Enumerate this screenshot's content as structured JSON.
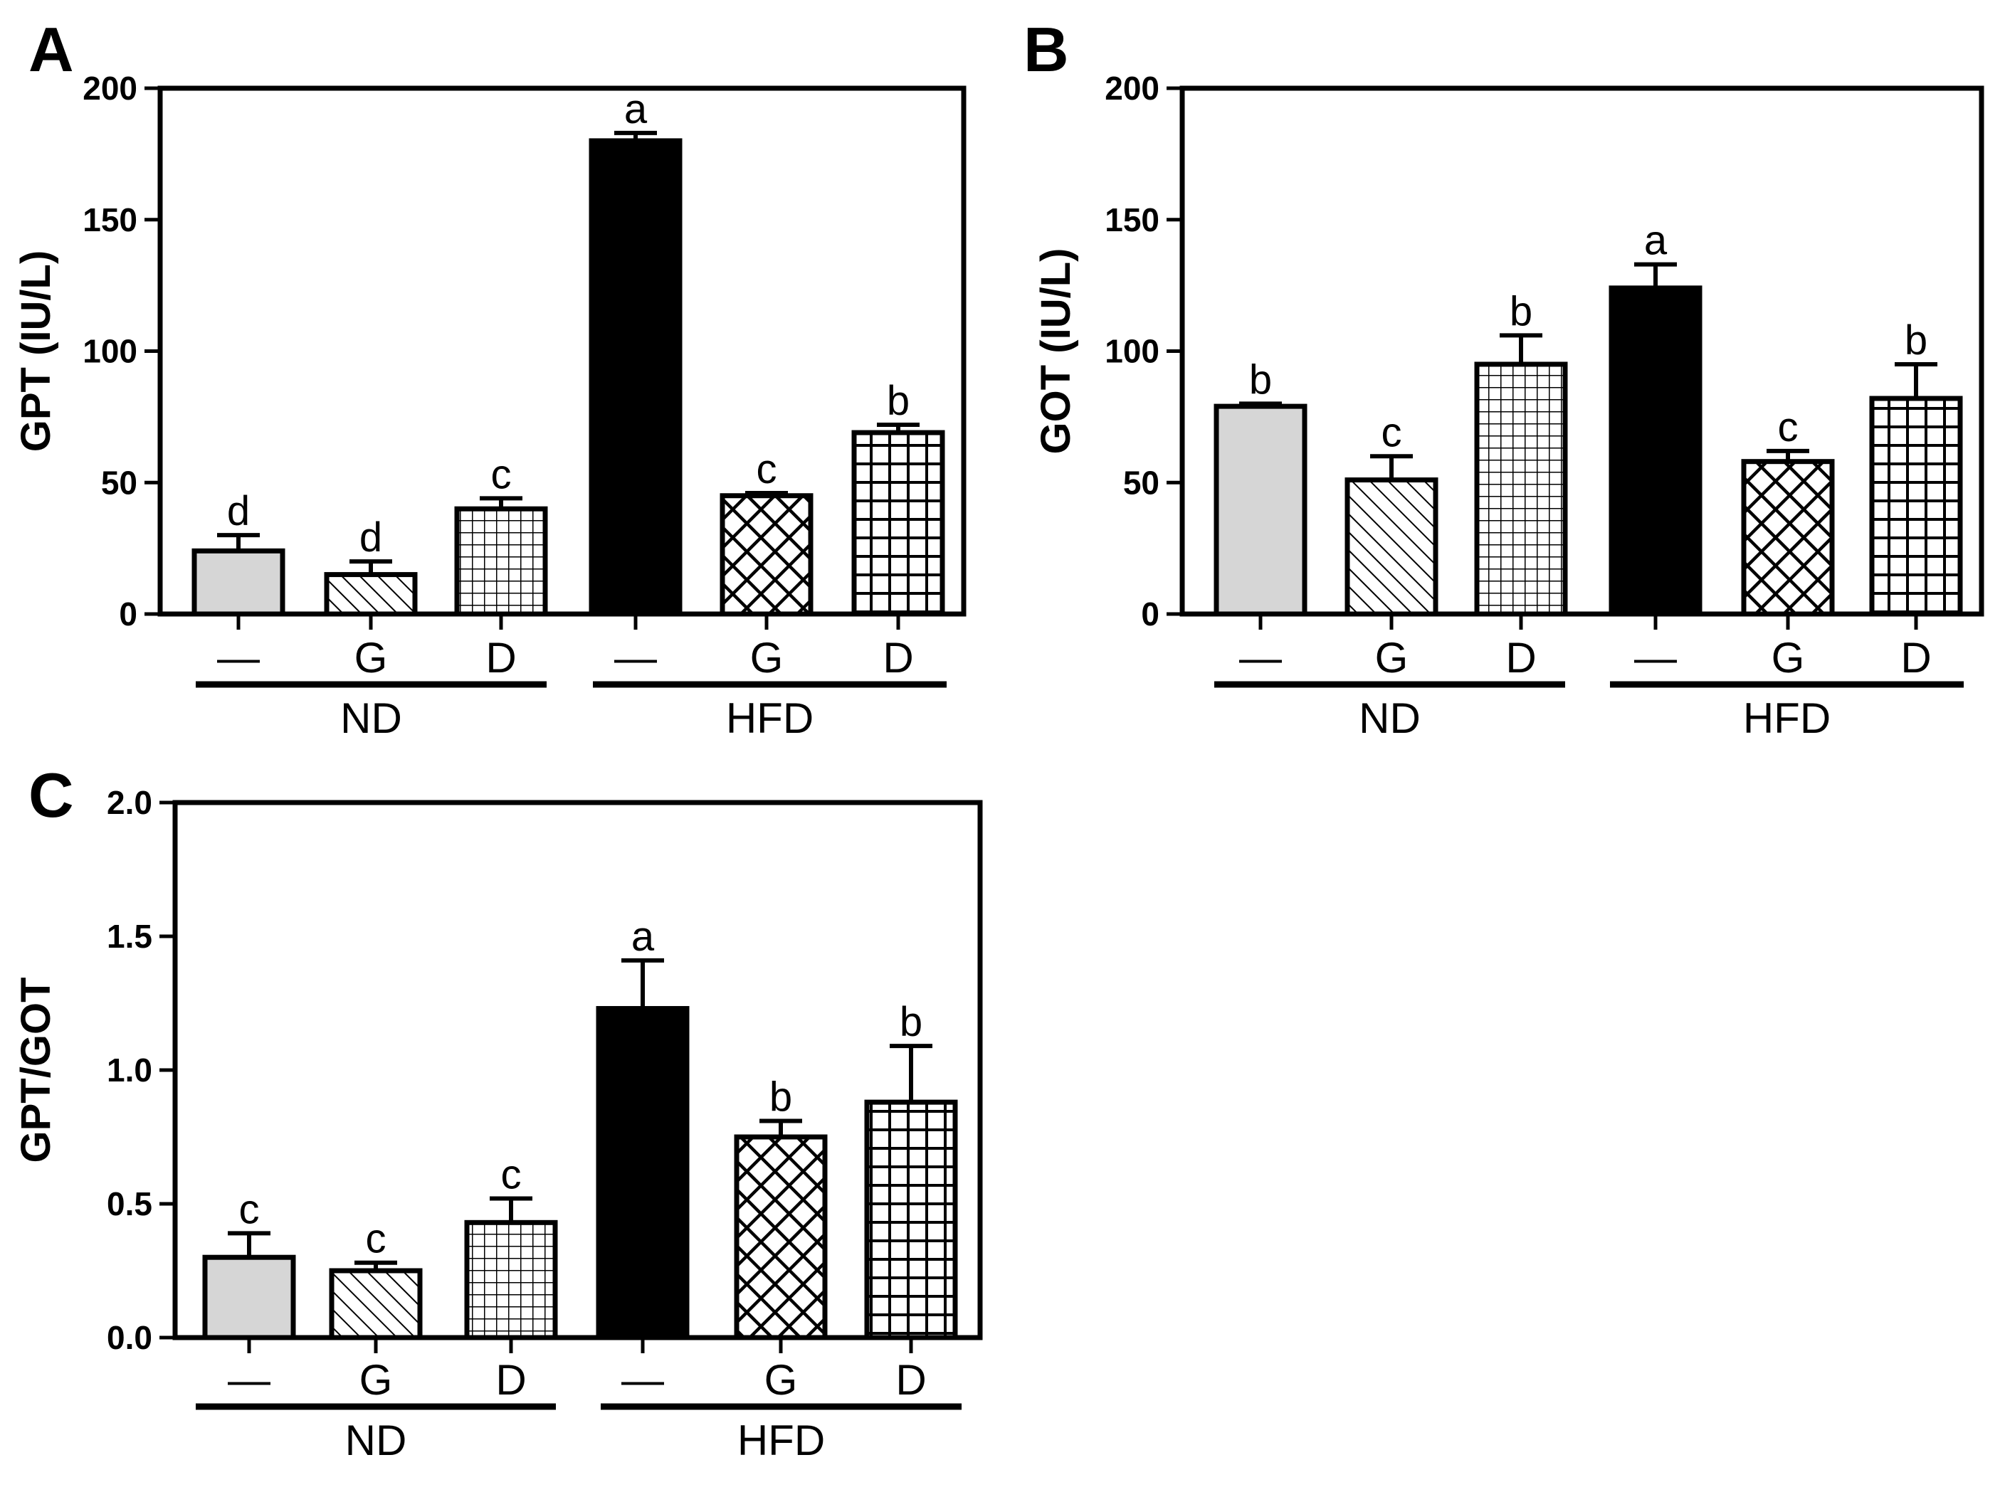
{
  "chart_data": [
    {
      "panel": "A",
      "type": "bar",
      "ylabel": "GPT (IU/L)",
      "ylim": [
        0,
        200
      ],
      "yticks": [
        "0",
        "50",
        "100",
        "150",
        "200"
      ],
      "categories": [
        "—",
        "G",
        "D",
        "—",
        "G",
        "D"
      ],
      "groups": [
        {
          "label": "ND",
          "members": [
            0,
            1,
            2
          ]
        },
        {
          "label": "HFD",
          "members": [
            3,
            4,
            5
          ]
        }
      ],
      "values": [
        24,
        15,
        40,
        180,
        45,
        69
      ],
      "errors": [
        6,
        5,
        4,
        3,
        1,
        3
      ],
      "letters": [
        "d",
        "d",
        "c",
        "a",
        "c",
        "b"
      ],
      "patterns": [
        "gray",
        "diagonal",
        "fine-grid",
        "solid",
        "crosshatch",
        "coarse-grid"
      ]
    },
    {
      "panel": "B",
      "type": "bar",
      "ylabel": "GOT (IU/L)",
      "ylim": [
        0,
        200
      ],
      "yticks": [
        "0",
        "50",
        "100",
        "150",
        "200"
      ],
      "categories": [
        "—",
        "G",
        "D",
        "—",
        "G",
        "D"
      ],
      "groups": [
        {
          "label": "ND",
          "members": [
            0,
            1,
            2
          ]
        },
        {
          "label": "HFD",
          "members": [
            3,
            4,
            5
          ]
        }
      ],
      "values": [
        79,
        51,
        95,
        124,
        58,
        82
      ],
      "errors": [
        1,
        9,
        11,
        9,
        4,
        13
      ],
      "letters": [
        "b",
        "c",
        "b",
        "a",
        "c",
        "b"
      ],
      "patterns": [
        "gray",
        "diagonal",
        "fine-grid",
        "solid",
        "crosshatch",
        "coarse-grid"
      ]
    },
    {
      "panel": "C",
      "type": "bar",
      "ylabel": "GPT/GOT",
      "ylim": [
        0,
        2.0
      ],
      "yticks": [
        "0.0",
        "0.5",
        "1.0",
        "1.5",
        "2.0"
      ],
      "categories": [
        "—",
        "G",
        "D",
        "—",
        "G",
        "D"
      ],
      "groups": [
        {
          "label": "ND",
          "members": [
            0,
            1,
            2
          ]
        },
        {
          "label": "HFD",
          "members": [
            3,
            4,
            5
          ]
        }
      ],
      "values": [
        0.3,
        0.25,
        0.43,
        1.23,
        0.75,
        0.88
      ],
      "errors": [
        0.09,
        0.03,
        0.09,
        0.18,
        0.06,
        0.21
      ],
      "letters": [
        "c",
        "c",
        "c",
        "a",
        "b",
        "b"
      ],
      "patterns": [
        "gray",
        "diagonal",
        "fine-grid",
        "solid",
        "crosshatch",
        "coarse-grid"
      ]
    }
  ]
}
